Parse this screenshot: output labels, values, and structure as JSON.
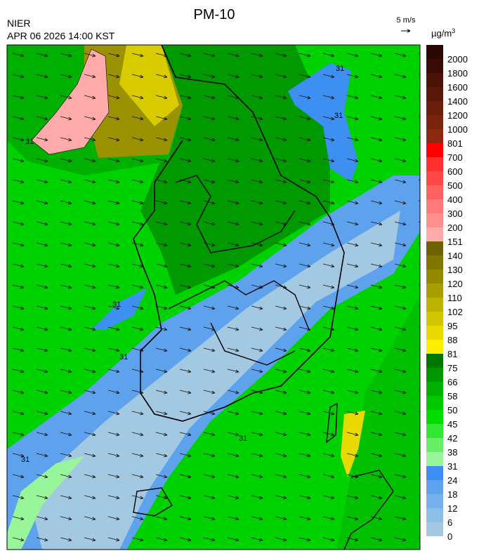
{
  "header": {
    "title": "PM-10",
    "agency": "NIER",
    "timestamp": "APR 06 2026 14:00 KST",
    "wind_scale": "5 m/s"
  },
  "legend": {
    "unit": "µg/m",
    "unit_superscript": "3",
    "levels": [
      0,
      6,
      12,
      18,
      24,
      31,
      38,
      42,
      45,
      50,
      58,
      66,
      75,
      81,
      88,
      95,
      102,
      110,
      120,
      130,
      140,
      151,
      200,
      300,
      400,
      500,
      600,
      700,
      801,
      1000,
      1200,
      1400,
      1600,
      1800,
      2000
    ],
    "colors": [
      "#a2c8e2",
      "#8cbfe8",
      "#76b0ec",
      "#5ea2ee",
      "#3d8ff2",
      "#99f599",
      "#66ee66",
      "#33e633",
      "#00dc00",
      "#00c800",
      "#00b000",
      "#009600",
      "#007800",
      "#ffee00",
      "#e8da00",
      "#d2c600",
      "#bcb200",
      "#a89e00",
      "#948a00",
      "#807600",
      "#6c6200",
      "#ffaaaa",
      "#ff9090",
      "#ff7a7a",
      "#ff6060",
      "#ff4848",
      "#ff3030",
      "#ff0000",
      "#8b2a10",
      "#7a2410",
      "#6a1e0c",
      "#5a180a",
      "#4a1208",
      "#3a0c06",
      "#2a0804"
    ]
  },
  "contour_labels": [
    "31",
    "31",
    "31",
    "31",
    "31",
    "31",
    "31"
  ]
}
